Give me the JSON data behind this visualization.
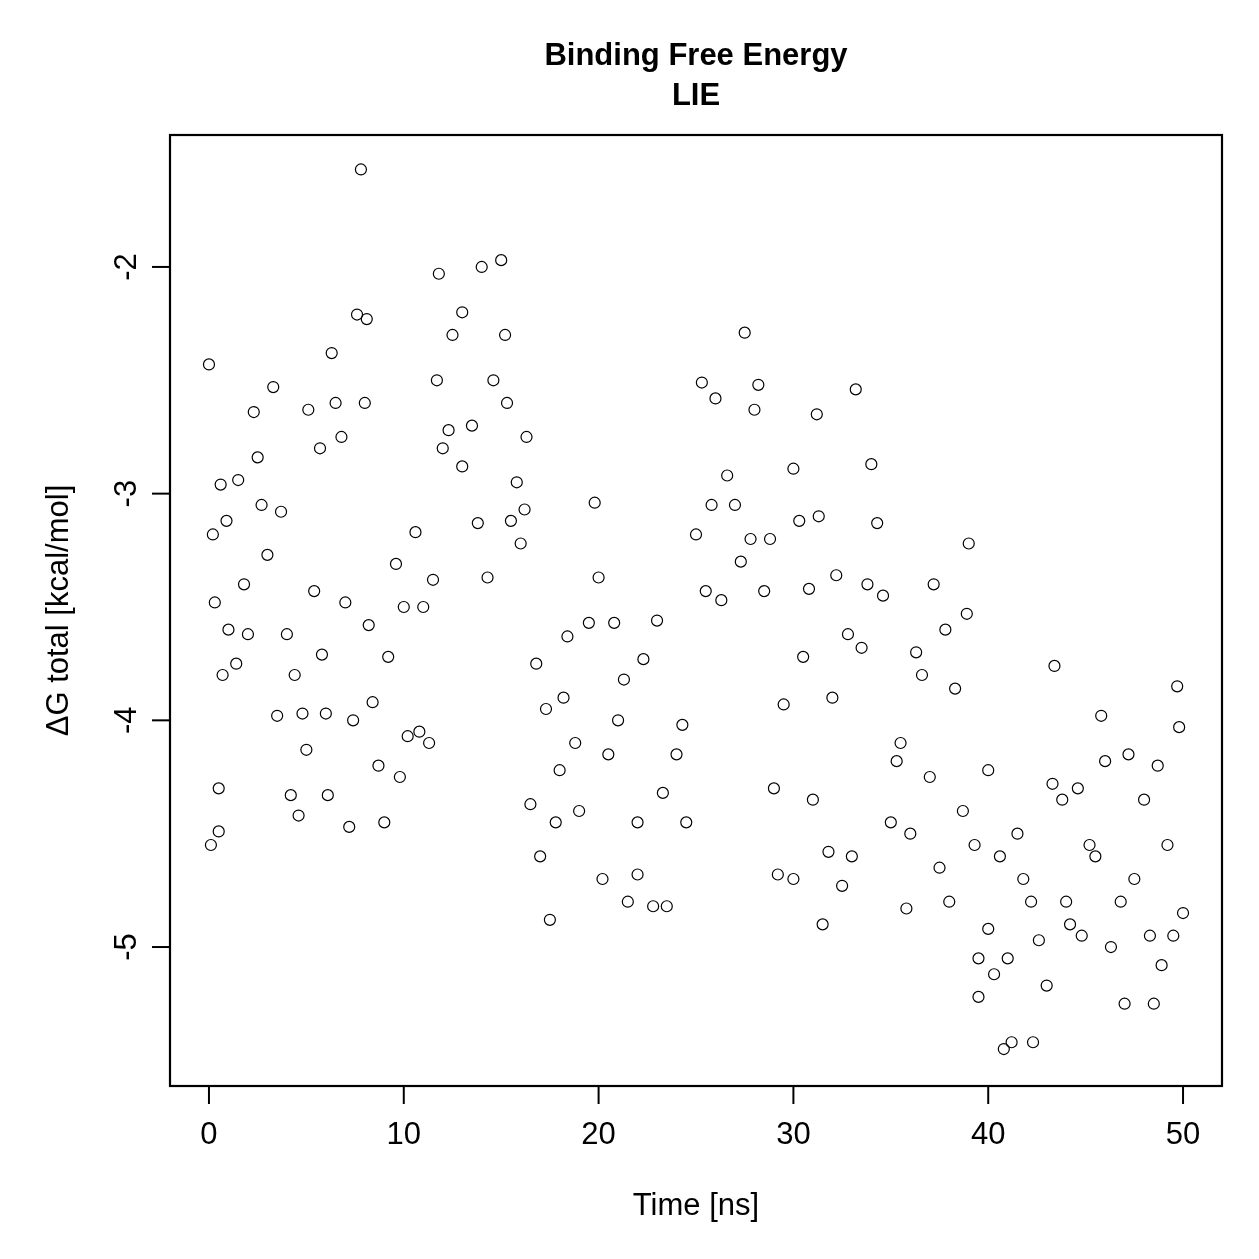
{
  "chart_data": {
    "type": "scatter",
    "title": "Binding Free Energy",
    "subtitle": "LIE",
    "xlabel": "Time [ns]",
    "ylabel": "ΔG total [kcal/mol]",
    "xlim": [
      -2,
      52
    ],
    "ylim": [
      -5.613,
      -1.418
    ],
    "xticks": [
      0,
      10,
      20,
      30,
      40,
      50
    ],
    "yticks": [
      -5,
      -4,
      -3,
      -2
    ],
    "grid": false,
    "marker": "circle",
    "series": [
      {
        "color": "#000000",
        "x": [
          0,
          0.1,
          0.2,
          0.3,
          0.5,
          0.5,
          0.6,
          0.7,
          0.9,
          1,
          1.5,
          1.4,
          1.8,
          2,
          2.3,
          2.5,
          2.7,
          3,
          3.3,
          3.5,
          3.7,
          4,
          4.2,
          4.4,
          4.6,
          4.8,
          5,
          5.1,
          5.4,
          5.7,
          5.8,
          6,
          6.1,
          6.3,
          6.5,
          6.8,
          7,
          7.2,
          7.4,
          7.6,
          7.8,
          8,
          8.1,
          8.2,
          8.4,
          8.7,
          9,
          9.2,
          9.6,
          9.8,
          10,
          10.2,
          10.6,
          10.8,
          11,
          11.3,
          11.5,
          11.7,
          11.8,
          12,
          12.3,
          12.5,
          13,
          13,
          13.5,
          13.8,
          14,
          14.3,
          14.6,
          15,
          15.2,
          15.3,
          15.5,
          15.8,
          16,
          16.2,
          16.3,
          16.5,
          16.8,
          17,
          17.3,
          17.5,
          17.8,
          18,
          18.2,
          18.4,
          18.8,
          19,
          19.5,
          19.8,
          20,
          20.2,
          20.5,
          20.8,
          21,
          21.3,
          21.5,
          22,
          22,
          22.3,
          22.8,
          23,
          23.3,
          23.5,
          24,
          24.3,
          24.5,
          25,
          25.3,
          25.5,
          25.8,
          26,
          26.3,
          26.6,
          27,
          27.3,
          27.5,
          27.8,
          28,
          28.2,
          28.5,
          28.8,
          29,
          29.2,
          29.5,
          30,
          30,
          30.3,
          30.5,
          30.8,
          31,
          31.2,
          31.3,
          31.5,
          31.8,
          32,
          32.2,
          32.5,
          32.8,
          33,
          33.2,
          33.5,
          33.8,
          34,
          34.3,
          34.6,
          35,
          35.3,
          35.5,
          35.8,
          36,
          36.3,
          36.6,
          37,
          37.2,
          37.5,
          37.8,
          38,
          38.3,
          38.7,
          38.9,
          39,
          39.3,
          39.5,
          39.5,
          40,
          40,
          40.3,
          40.6,
          40.8,
          41,
          41.2,
          41.5,
          41.8,
          42.2,
          42.3,
          42.6,
          43,
          43.3,
          43.4,
          43.8,
          44,
          44.2,
          44.6,
          44.8,
          45.2,
          45.5,
          45.8,
          46,
          46.3,
          46.8,
          47,
          47.2,
          47.5,
          48,
          48.3,
          48.5,
          48.7,
          48.9,
          49.2,
          49.5,
          49.7,
          49.8,
          50
        ],
        "values": [
          -2.43,
          -4.55,
          -3.18,
          -3.48,
          -4.3,
          -4.49,
          -2.96,
          -3.8,
          -3.12,
          -3.6,
          -2.94,
          -3.75,
          -3.4,
          -3.62,
          -2.64,
          -2.84,
          -3.05,
          -3.27,
          -2.53,
          -3.98,
          -3.08,
          -3.62,
          -4.33,
          -3.8,
          -4.42,
          -3.97,
          -4.13,
          -2.63,
          -3.43,
          -2.8,
          -3.71,
          -3.97,
          -4.33,
          -2.38,
          -2.6,
          -2.75,
          -3.48,
          -4.47,
          -4,
          -2.21,
          -1.57,
          -2.6,
          -2.23,
          -3.58,
          -3.92,
          -4.2,
          -4.45,
          -3.72,
          -3.31,
          -4.25,
          -3.5,
          -4.07,
          -3.17,
          -4.05,
          -3.5,
          -4.1,
          -3.38,
          -2.5,
          -2.03,
          -2.8,
          -2.72,
          -2.3,
          -2.2,
          -2.88,
          -2.7,
          -3.13,
          -2,
          -3.37,
          -2.5,
          -1.97,
          -2.3,
          -2.6,
          -3.12,
          -2.95,
          -3.22,
          -3.07,
          -2.75,
          -4.37,
          -3.75,
          -4.6,
          -3.95,
          -4.88,
          -4.45,
          -4.22,
          -3.9,
          -3.63,
          -4.1,
          -4.4,
          -3.57,
          -3.04,
          -3.37,
          -4.7,
          -4.15,
          -3.57,
          -4,
          -3.82,
          -4.8,
          -4.45,
          -4.68,
          -3.73,
          -4.82,
          -3.56,
          -4.32,
          -4.82,
          -4.15,
          -4.02,
          -4.45,
          -3.18,
          -2.51,
          -3.43,
          -3.05,
          -2.58,
          -3.47,
          -2.92,
          -3.05,
          -3.3,
          -2.29,
          -3.2,
          -2.63,
          -2.52,
          -3.43,
          -3.2,
          -4.3,
          -4.68,
          -3.93,
          -4.7,
          -2.89,
          -3.12,
          -3.72,
          -3.42,
          -4.35,
          -2.65,
          -3.1,
          -4.9,
          -4.58,
          -3.9,
          -3.36,
          -4.73,
          -3.62,
          -4.6,
          -2.54,
          -3.68,
          -3.4,
          -2.87,
          -3.13,
          -3.45,
          -4.45,
          -4.18,
          -4.1,
          -4.83,
          -4.5,
          -3.7,
          -3.8,
          -4.25,
          -3.4,
          -4.65,
          -3.6,
          -4.8,
          -3.86,
          -4.4,
          -3.53,
          -3.22,
          -4.55,
          -5.05,
          -5.22,
          -4.22,
          -4.92,
          -5.12,
          -4.6,
          -5.45,
          -5.05,
          -5.42,
          -4.5,
          -4.7,
          -4.8,
          -5.42,
          -4.97,
          -5.17,
          -4.28,
          -3.76,
          -4.35,
          -4.8,
          -4.9,
          -4.3,
          -4.95,
          -4.55,
          -4.6,
          -3.98,
          -4.18,
          -5,
          -4.8,
          -5.25,
          -4.15,
          -4.7,
          -4.35,
          -4.95,
          -5.25,
          -4.2,
          -5.08,
          -4.55,
          -4.95,
          -3.85,
          -4.03,
          -4.85
        ]
      }
    ]
  }
}
